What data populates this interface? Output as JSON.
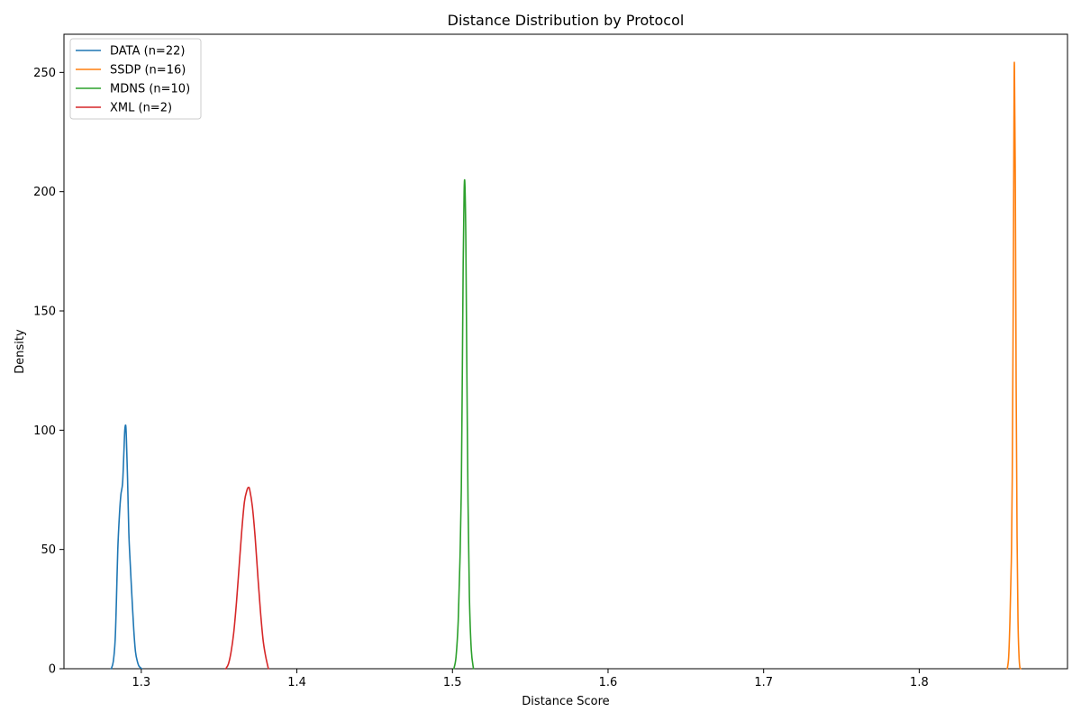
{
  "chart_data": {
    "type": "line",
    "title": "Distance Distribution by Protocol",
    "xlabel": "Distance Score",
    "ylabel": "Density",
    "xlim": [
      1.2503,
      1.8953
    ],
    "ylim": [
      0,
      266
    ],
    "xticks": [
      1.3,
      1.4,
      1.5,
      1.6,
      1.7,
      1.8
    ],
    "xtick_labels": [
      "1.3",
      "1.4",
      "1.5",
      "1.6",
      "1.7",
      "1.8"
    ],
    "yticks": [
      0,
      50,
      100,
      150,
      200,
      250
    ],
    "ytick_labels": [
      "0",
      "50",
      "100",
      "150",
      "200",
      "250"
    ],
    "grid": false,
    "legend_position": "top-left",
    "series": [
      {
        "name": "DATA (n=22)",
        "color": "#1f77b4",
        "x": [
          1.2807,
          1.282,
          1.2832,
          1.284,
          1.2849,
          1.286,
          1.2869,
          1.288,
          1.2889,
          1.2894,
          1.29,
          1.2904,
          1.2912,
          1.292,
          1.2929,
          1.294,
          1.2952,
          1.2963,
          1.2975,
          1.2986,
          1.3003
        ],
        "y": [
          0,
          3,
          12,
          28,
          50,
          65,
          73,
          78,
          92,
          100,
          102,
          97,
          79,
          57,
          44,
          30,
          16,
          7,
          3,
          1,
          0
        ]
      },
      {
        "name": "SSDP (n=16)",
        "color": "#ff7f0e",
        "x": [
          1.8566,
          1.8575,
          1.8583,
          1.8592,
          1.8598,
          1.8604,
          1.8609,
          1.8612,
          1.8618,
          1.8623,
          1.8629,
          1.8635,
          1.8641,
          1.8646,
          1.8652
        ],
        "y": [
          0,
          5,
          20,
          45,
          80,
          150,
          230,
          253,
          200,
          120,
          55,
          20,
          6,
          1,
          0
        ]
      },
      {
        "name": "MDNS (n=10)",
        "color": "#2ca02c",
        "x": [
          1.5009,
          1.5023,
          1.5037,
          1.5048,
          1.5057,
          1.5063,
          1.5069,
          1.5075,
          1.508,
          1.5086,
          1.5092,
          1.51,
          1.5109,
          1.5121,
          1.5135
        ],
        "y": [
          0,
          5,
          20,
          45,
          75,
          120,
          170,
          200,
          203,
          180,
          130,
          70,
          30,
          8,
          0
        ]
      },
      {
        "name": "XML (n=2)",
        "color": "#d62728",
        "x": [
          1.3543,
          1.356,
          1.3577,
          1.3594,
          1.3612,
          1.3629,
          1.3646,
          1.3663,
          1.368,
          1.3689,
          1.3697,
          1.3714,
          1.3732,
          1.3749,
          1.3766,
          1.3783,
          1.38,
          1.3817
        ],
        "y": [
          0,
          2,
          7,
          15,
          28,
          43,
          58,
          70,
          75,
          76,
          75,
          68,
          55,
          39,
          24,
          12,
          5,
          0
        ]
      }
    ]
  }
}
